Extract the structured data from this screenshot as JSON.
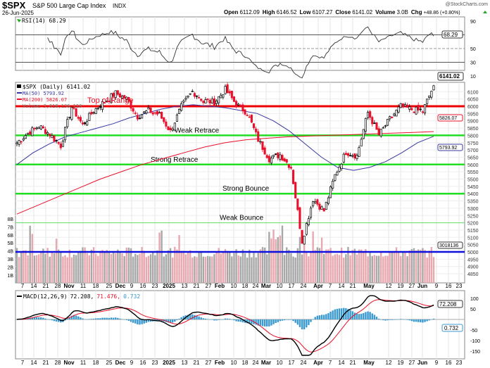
{
  "header": {
    "symbol": "$SPX",
    "name": "S&P 500 Large Cap Index",
    "exchange": "INDX",
    "date": "26-Jun-2025",
    "watermark": "@StockCharts.com",
    "open_label": "Open",
    "open": "6112.09",
    "high_label": "High",
    "high": "6146.52",
    "low_label": "Low",
    "low": "6107.27",
    "close_label": "Close",
    "close": "6141.02",
    "volume_label": "Volume",
    "volume": "3.0B",
    "chg_label": "Chg",
    "chg": "+48.86 (+0.80%)"
  },
  "colors": {
    "up": "#000000",
    "down": "#e8102a",
    "ma50": "#3838a0",
    "ma200": "#e8102a",
    "resistance": "#ee0000",
    "support": "#22dd22",
    "blue_line": "#1010dd",
    "vol_up": "#e8a8b0",
    "vol_down": "#a8a8a8",
    "macd_hist": "#3a9ad0"
  },
  "rsi": {
    "label": "RSI(14) 68.29",
    "value_tag": "68.29",
    "ticks": [
      "90",
      "50",
      "30",
      "10"
    ]
  },
  "price": {
    "legend_main": "$SPX (Daily) 6141.02",
    "legend_ma50": "MA(50) 5793.92",
    "legend_ma200": "MA(200) 5826.07",
    "legend_vol": "Volume 3,018,136,120",
    "overlay_label": "Top of Range",
    "last_tag": "6141.02",
    "ma200_tag": "5826.07",
    "ma50_tag": "5793.92",
    "vol_tag": "3018136",
    "ticks": [
      "6100",
      "6050",
      "6000",
      "5950",
      "5900",
      "5850",
      "5800",
      "5750",
      "5700",
      "5650",
      "5600",
      "5550",
      "5500",
      "5450",
      "5400",
      "5350",
      "5300",
      "5250",
      "5200",
      "5150",
      "5100",
      "5050",
      "5000",
      "4950",
      "4900",
      "4850"
    ],
    "vol_ticks": [
      "8B",
      "7B",
      "6B",
      "5B",
      "4B",
      "3B",
      "2B",
      "1B"
    ],
    "levels": [
      {
        "price": 6000,
        "label": "",
        "kind": "resistance"
      },
      {
        "price": 5800,
        "label": "Weak Retrace",
        "kind": "support"
      },
      {
        "price": 5600,
        "label": "Strong Retrace",
        "kind": "support"
      },
      {
        "price": 5400,
        "label": "Strong Bounce",
        "kind": "support"
      },
      {
        "price": 5200,
        "label": "Weak Bounce",
        "kind": "support_thin"
      },
      {
        "price": 5000,
        "label": "",
        "kind": "blue"
      }
    ]
  },
  "macd": {
    "label_name": "MACD(12,26,9)",
    "macd": "72.208,",
    "signal": "71.476,",
    "hist": "0.732",
    "macd_tag": "72.208",
    "hist_tag": "0.732",
    "ticks": [
      "100",
      "50",
      "-50",
      "-100",
      "-150"
    ]
  },
  "date_labels": [
    "7",
    "14",
    "21",
    "28",
    "Nov",
    "11",
    "18",
    "25",
    "Dec",
    "9",
    "16",
    "23",
    "2025",
    "13",
    "21",
    "27",
    "Feb",
    "10",
    "18",
    "24",
    "Mar",
    "10",
    "17",
    "24",
    "Apr",
    "7",
    "14",
    "21",
    "May",
    "12",
    "19",
    "27",
    "Jun",
    "9",
    "16",
    "23"
  ],
  "chart_data": {
    "type": "candlestick",
    "title": "$SPX S&P 500 Large Cap Index INDX (Daily)",
    "period": "Oct 2024 - 26 Jun 2025",
    "weekly_closes": [
      5750,
      5815,
      5865,
      5808,
      5729,
      5995,
      5870,
      5969,
      6032,
      6090,
      6051,
      5930,
      5970,
      5942,
      5827,
      5997,
      6101,
      6040,
      6026,
      6115,
      6013,
      5955,
      5770,
      5639,
      5667,
      5581,
      5074,
      5363,
      5282,
      5525,
      5686,
      5660,
      5958,
      5802,
      5912,
      6000,
      5977,
      5967,
      6141
    ],
    "ma50": [
      5600,
      5680,
      5740,
      5790,
      5820,
      5850,
      5880,
      5920,
      5950,
      5980,
      6000,
      6010,
      6000,
      5990,
      5970,
      5950,
      5900,
      5830,
      5740,
      5650,
      5580,
      5560,
      5580,
      5620,
      5680,
      5750,
      5793.92
    ],
    "ma200": [
      5260,
      5320,
      5380,
      5440,
      5500,
      5550,
      5600,
      5640,
      5680,
      5720,
      5750,
      5770,
      5780,
      5790,
      5795,
      5800,
      5805,
      5810,
      5815,
      5820,
      5826.07
    ],
    "ylim": [
      4850,
      6150
    ],
    "rsi_ylim": [
      0,
      100
    ],
    "macd_ylim": [
      -175,
      125
    ],
    "last": {
      "open": 6112.09,
      "high": 6146.52,
      "low": 6107.27,
      "close": 6141.02,
      "rsi": 68.29,
      "macd": 72.208,
      "signal": 71.476,
      "hist": 0.732
    }
  }
}
